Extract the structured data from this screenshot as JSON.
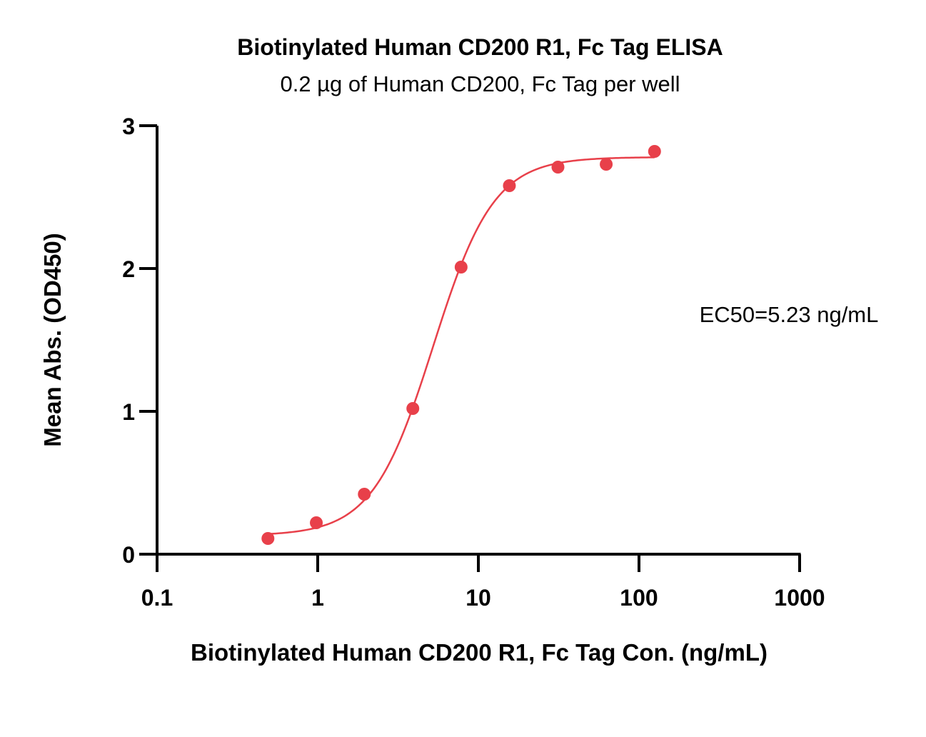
{
  "chart_data": {
    "type": "scatter",
    "title": "Biotinylated Human CD200 R1, Fc Tag ELISA",
    "subtitle": "0.2 µg of Human CD200, Fc Tag per well",
    "xlabel": "Biotinylated Human CD200 R1, Fc Tag Con. (ng/mL)",
    "ylabel": "Mean Abs. (OD450)",
    "xscale": "log",
    "xlim": [
      0.1,
      1000
    ],
    "ylim": [
      0,
      3
    ],
    "xticks": [
      "0.1",
      "1",
      "10",
      "100",
      "1000"
    ],
    "yticks": [
      "0",
      "1",
      "2",
      "3"
    ],
    "annotation": "EC50=5.23 ng/mL",
    "color": "#e8404a",
    "points": {
      "x": [
        0.49,
        0.98,
        1.95,
        3.91,
        7.81,
        15.6,
        31.3,
        62.5,
        125
      ],
      "y": [
        0.11,
        0.22,
        0.42,
        1.02,
        2.01,
        2.58,
        2.71,
        2.73,
        2.82
      ]
    },
    "fit": {
      "model": "4PL",
      "bottom": 0.13,
      "top": 2.78,
      "ec50": 5.23,
      "hill": 2.3
    }
  }
}
